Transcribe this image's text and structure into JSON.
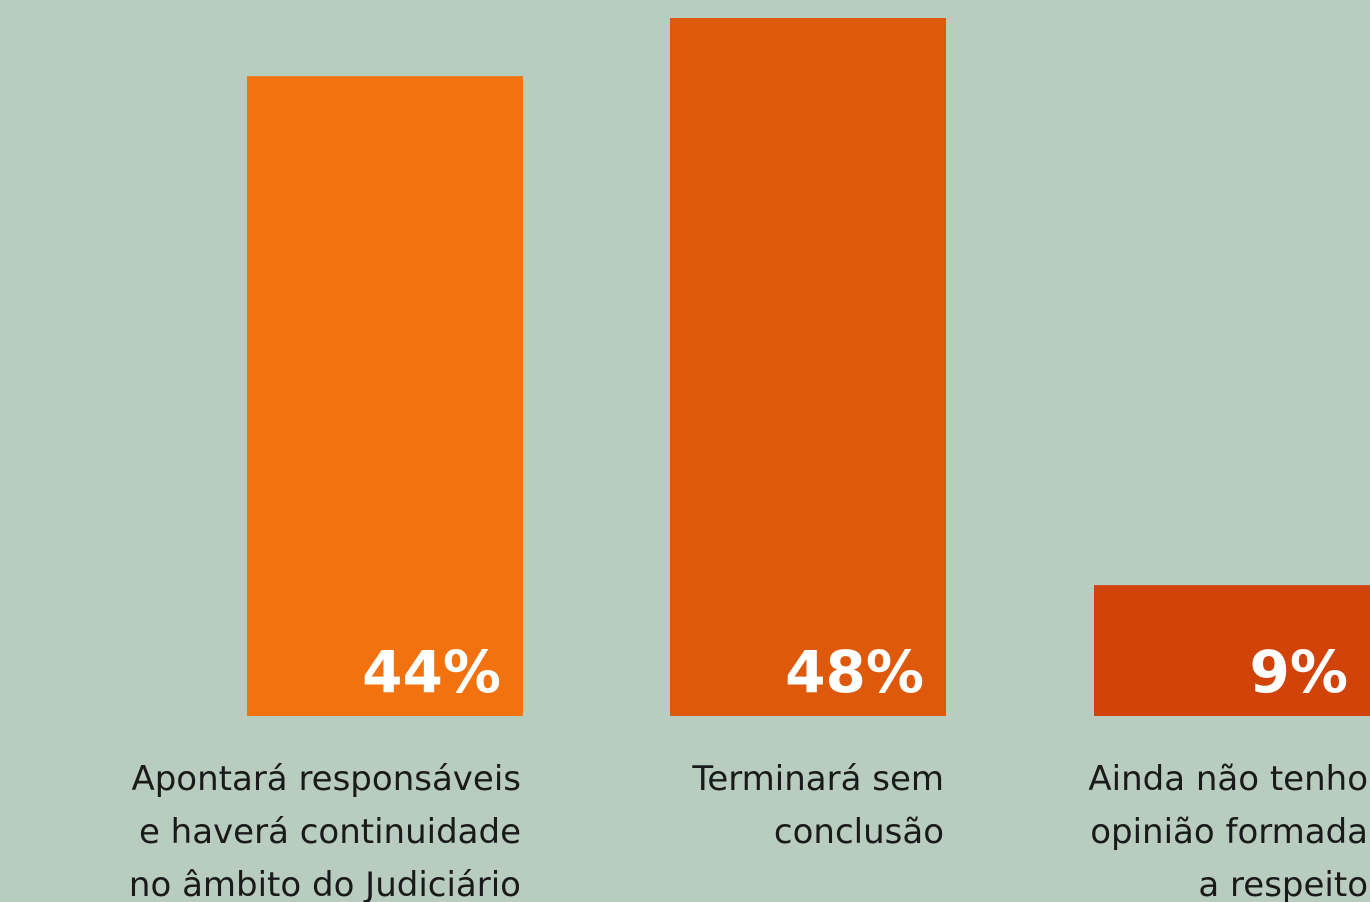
{
  "chart_data": {
    "type": "bar",
    "categories": [
      "Apontará responsáveis\ne haverá continuidade\nno âmbito do Judiciário",
      "Terminará sem\nconclusão",
      "Ainda não tenho\nopinião formada\na respeito"
    ],
    "values": [
      44,
      48,
      9
    ],
    "value_labels": [
      "44%",
      "48%",
      "9%"
    ],
    "colors": [
      "#f27210",
      "#de590b",
      "#d2430a"
    ]
  }
}
